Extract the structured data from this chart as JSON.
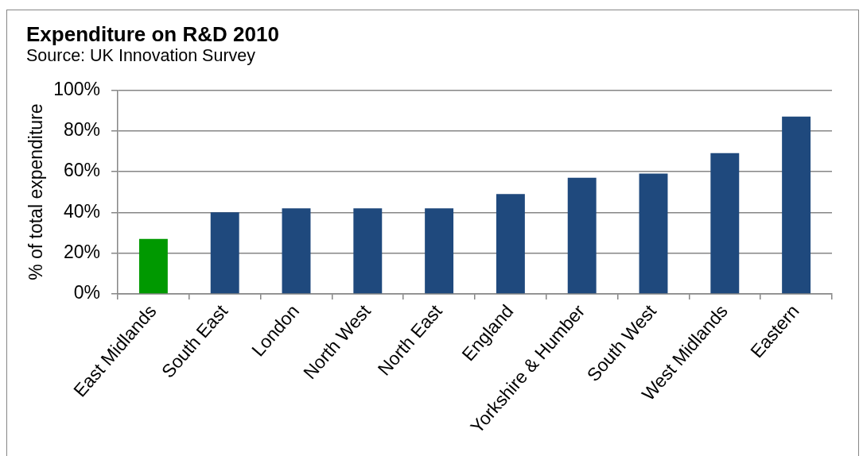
{
  "chart_data": {
    "type": "bar",
    "title": "Expenditure on R&D 2010",
    "subtitle": "Source: UK Innovation Survey",
    "ylabel": "% of total expenditure",
    "categories": [
      "East Midlands",
      "South East",
      "London",
      "North West",
      "North East",
      "England",
      "Yorkshire & Humber",
      "South West",
      "West Midlands",
      "Eastern"
    ],
    "values": [
      27,
      40,
      42,
      42,
      42,
      49,
      57,
      59,
      69,
      87
    ],
    "colors": [
      "#009900",
      "#1f497d",
      "#1f497d",
      "#1f497d",
      "#1f497d",
      "#1f497d",
      "#1f497d",
      "#1f497d",
      "#1f497d",
      "#1f497d"
    ],
    "ylim": [
      0,
      100
    ],
    "yticks": [
      {
        "value": 0,
        "label": "0%"
      },
      {
        "value": 20,
        "label": "20%"
      },
      {
        "value": 40,
        "label": "40%"
      },
      {
        "value": 60,
        "label": "60%"
      },
      {
        "value": 80,
        "label": "80%"
      },
      {
        "value": 100,
        "label": "100%"
      }
    ],
    "grid": "y"
  }
}
